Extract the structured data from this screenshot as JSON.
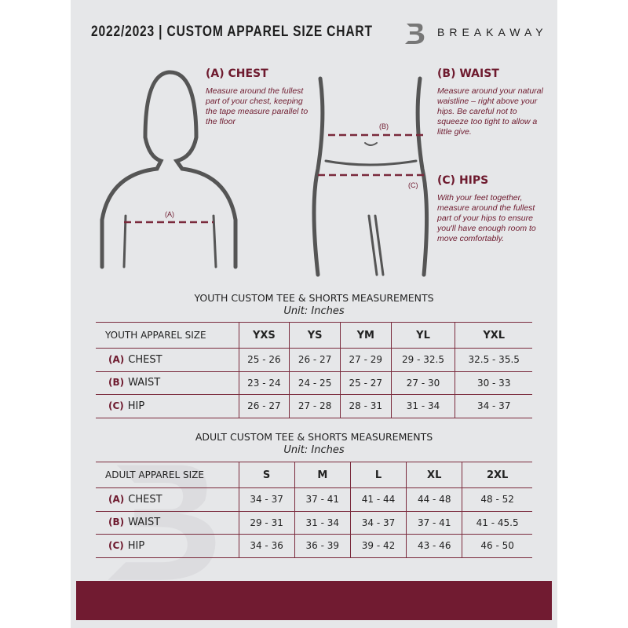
{
  "header": {
    "title": "2022/2023  |  CUSTOM APPAREL SIZE CHART",
    "brand": "BREAKAWAY",
    "logo_letter": "B"
  },
  "measures": {
    "chest": {
      "title": "(A) CHEST",
      "desc": "Measure around the fullest part of your chest, keeping the tape measure parallel to the floor",
      "marker": "(A)"
    },
    "waist": {
      "title": "(B) WAIST",
      "desc": "Measure around your natural waistline – right above your hips. Be careful not to squeeze too tight to allow a little give.",
      "marker": "(B)"
    },
    "hips": {
      "title": "(C) HIPS",
      "desc": "With your feet together, measure around the fullest part of your hips to ensure you'll have enough room to move comfortably.",
      "marker": "(C)"
    }
  },
  "youth": {
    "title": "YOUTH CUSTOM TEE & SHORTS MEASUREMENTS",
    "unit": "Unit: Inches",
    "header": "YOUTH APPAREL SIZE",
    "sizes": [
      "YXS",
      "YS",
      "YM",
      "YL",
      "YXL"
    ],
    "rows": [
      {
        "letter": "(A)",
        "label": "CHEST",
        "values": [
          "25 - 26",
          "26 - 27",
          "27 - 29",
          "29 - 32.5",
          "32.5 - 35.5"
        ]
      },
      {
        "letter": "(B)",
        "label": "WAIST",
        "values": [
          "23 - 24",
          "24 - 25",
          "25 - 27",
          "27 - 30",
          "30 - 33"
        ]
      },
      {
        "letter": "(C)",
        "label": "HIP",
        "values": [
          "26 - 27",
          "27 - 28",
          "28 - 31",
          "31 - 34",
          "34 - 37"
        ]
      }
    ]
  },
  "adult": {
    "title": "ADULT CUSTOM TEE & SHORTS MEASUREMENTS",
    "unit": "Unit: Inches",
    "header": "ADULT APPAREL SIZE",
    "sizes": [
      "S",
      "M",
      "L",
      "XL",
      "2XL"
    ],
    "rows": [
      {
        "letter": "(A)",
        "label": "CHEST",
        "values": [
          "34 - 37",
          "37 - 41",
          "41 - 44",
          "44 - 48",
          "48 - 52"
        ]
      },
      {
        "letter": "(B)",
        "label": "WAIST",
        "values": [
          "29 - 31",
          "31 - 34",
          "34 - 37",
          "37 - 41",
          "41 - 45.5"
        ]
      },
      {
        "letter": "(C)",
        "label": "HIP",
        "values": [
          "34 - 36",
          "36 - 39",
          "39 - 42",
          "43 - 46",
          "46 - 50"
        ]
      }
    ]
  },
  "colors": {
    "accent": "#6e1a2e",
    "footer": "#711b31",
    "background": "#e6e7e9"
  }
}
